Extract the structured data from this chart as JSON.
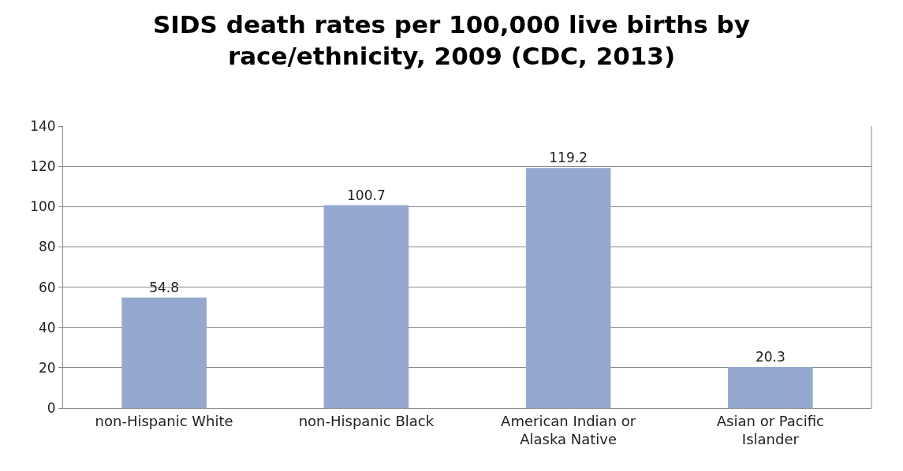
{
  "chart_data": {
    "type": "bar",
    "title": "SIDS death rates per 100,000 live births by race/ethnicity, 2009 (CDC, 2013)",
    "categories": [
      "non-Hispanic White",
      "non-Hispanic Black",
      "American Indian or Alaska Native",
      "Asian or Pacific Islander"
    ],
    "values": [
      54.8,
      100.7,
      119.2,
      20.3
    ],
    "color": "#95a9d0",
    "ylim": [
      0,
      140
    ],
    "yticks": [
      0,
      20,
      40,
      60,
      80,
      100,
      120,
      140
    ],
    "grid": "y",
    "data_labels": true
  }
}
